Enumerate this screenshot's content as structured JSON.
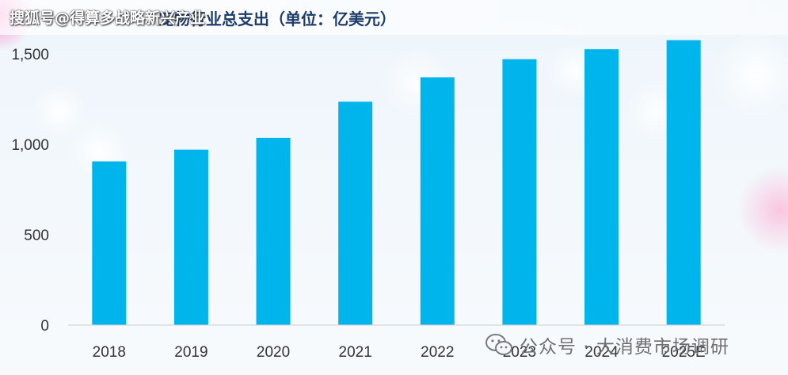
{
  "watermark_top": "搜狐号@得算多战略新兴产业",
  "watermark_bottom": "公众号 · 大消费市场调研",
  "chart_data": {
    "type": "bar",
    "title": "宠物行业总支出（单位：亿美元）",
    "categories": [
      "2018",
      "2019",
      "2020",
      "2021",
      "2022",
      "2023",
      "2024",
      "2025E"
    ],
    "values": [
      905,
      970,
      1035,
      1235,
      1370,
      1470,
      1525,
      1575
    ],
    "ylim": [
      0,
      1600
    ],
    "yticks": [
      0,
      500,
      1000,
      1500
    ],
    "ytick_labels": [
      "0",
      "500",
      "1,000",
      "1,500"
    ],
    "xlabel": "",
    "ylabel": "",
    "grid": false,
    "bar_color": "#00b4ec"
  }
}
